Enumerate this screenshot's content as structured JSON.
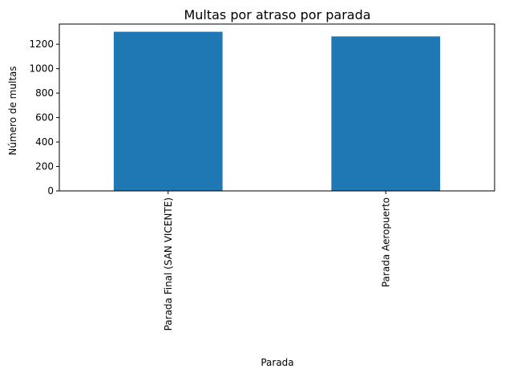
{
  "chart_data": {
    "type": "bar",
    "title": "Multas por atraso por parada",
    "xlabel": "Parada",
    "ylabel": "Número de multas",
    "categories": [
      "Parada Final (SAN VICENTE)",
      "Parada Aeropuerto"
    ],
    "values": [
      1302,
      1264
    ],
    "ylim": [
      0,
      1365
    ],
    "yticks": [
      0,
      200,
      400,
      600,
      800,
      1000,
      1200
    ],
    "grid": false,
    "legend": "none",
    "bar_color": "#1f77b4"
  }
}
